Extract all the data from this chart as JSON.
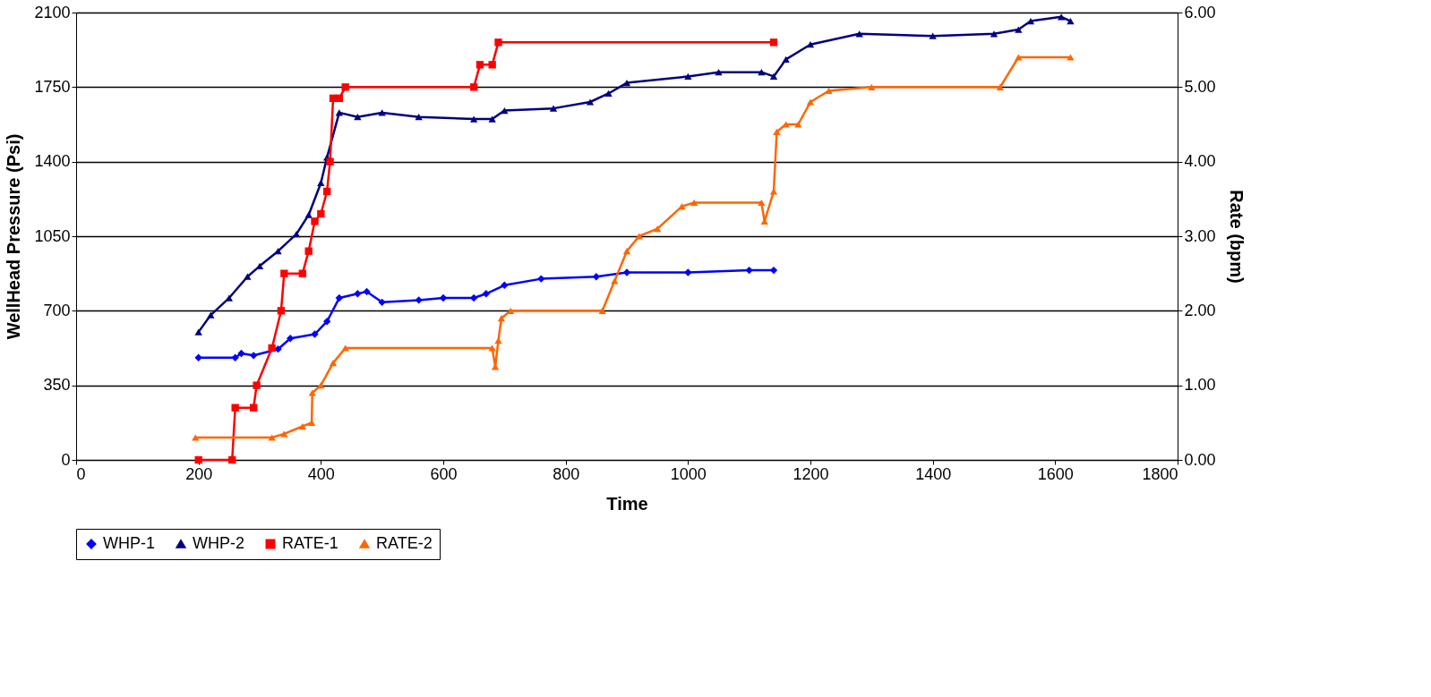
{
  "chart_data": {
    "type": "line",
    "xlabel": "Time",
    "ylabel": "WellHead Pressure (Psi)",
    "y2label": "Rate (bpm)",
    "xlim": [
      0,
      1800
    ],
    "xticks": [
      0,
      200,
      400,
      600,
      800,
      1000,
      1200,
      1400,
      1600,
      1800
    ],
    "ylim": [
      0,
      2100
    ],
    "yticks": [
      0,
      350,
      700,
      1050,
      1400,
      1750,
      2100
    ],
    "y2lim": [
      0,
      6
    ],
    "y2ticks": [
      {
        "value": 0,
        "label": "0.00"
      },
      {
        "value": 1,
        "label": "1.00"
      },
      {
        "value": 2,
        "label": "2.00"
      },
      {
        "value": 3,
        "label": "3.00"
      },
      {
        "value": 4,
        "label": "4.00"
      },
      {
        "value": 5,
        "label": "5.00"
      },
      {
        "value": 6,
        "label": "6.00"
      }
    ],
    "grid": "y",
    "legend": "bottom",
    "line_style": "solid",
    "series": [
      {
        "name": "WHP-1",
        "color": "#0000ff",
        "marker": "diamond",
        "x": [
          200,
          260,
          270,
          290,
          330,
          350,
          390,
          410,
          430,
          460,
          475,
          500,
          560,
          600,
          650,
          670,
          700,
          760,
          850,
          900,
          1000,
          1100,
          1140
        ],
        "values": [
          480,
          480,
          500,
          490,
          520,
          570,
          590,
          650,
          760,
          780,
          790,
          740,
          750,
          760,
          760,
          780,
          820,
          850,
          860,
          880,
          880,
          890,
          890
        ]
      },
      {
        "name": "WHP-2",
        "color": "#000080",
        "marker": "triangle",
        "x": [
          200,
          220,
          250,
          280,
          300,
          330,
          360,
          380,
          400,
          410,
          430,
          460,
          500,
          560,
          650,
          680,
          700,
          780,
          840,
          870,
          900,
          1000,
          1050,
          1120,
          1140,
          1160,
          1200,
          1280,
          1400,
          1500,
          1540,
          1560,
          1610,
          1625
        ],
        "values": [
          600,
          680,
          760,
          860,
          910,
          980,
          1060,
          1150,
          1300,
          1420,
          1630,
          1610,
          1630,
          1610,
          1600,
          1600,
          1640,
          1650,
          1680,
          1720,
          1770,
          1800,
          1820,
          1820,
          1800,
          1880,
          1950,
          2000,
          1990,
          2000,
          2020,
          2060,
          2080,
          2060
        ]
      },
      {
        "name": "RATE-1",
        "color": "#ff0000",
        "marker": "square",
        "axis": "y2",
        "x": [
          200,
          255,
          260,
          290,
          295,
          320,
          335,
          340,
          370,
          380,
          390,
          400,
          410,
          415,
          420,
          430,
          440,
          650,
          660,
          680,
          690,
          1140
        ],
        "values": [
          0,
          0,
          0.7,
          0.7,
          1.0,
          1.5,
          2.0,
          2.5,
          2.5,
          2.8,
          3.2,
          3.3,
          3.6,
          4.0,
          4.85,
          4.85,
          5.0,
          5.0,
          5.3,
          5.3,
          5.6,
          5.6
        ]
      },
      {
        "name": "RATE-2",
        "color": "#ff6600",
        "marker": "triangle",
        "axis": "y2",
        "x": [
          195,
          320,
          340,
          370,
          385,
          386,
          400,
          420,
          440,
          680,
          685,
          690,
          695,
          710,
          860,
          880,
          900,
          920,
          950,
          990,
          1010,
          1120,
          1125,
          1140,
          1145,
          1160,
          1180,
          1200,
          1230,
          1300,
          1510,
          1540,
          1625
        ],
        "values": [
          0.3,
          0.3,
          0.35,
          0.45,
          0.5,
          0.9,
          1.0,
          1.3,
          1.5,
          1.5,
          1.25,
          1.6,
          1.9,
          2.0,
          2.0,
          2.4,
          2.8,
          3.0,
          3.1,
          3.4,
          3.45,
          3.45,
          3.2,
          3.6,
          4.4,
          4.5,
          4.5,
          4.8,
          4.95,
          5.0,
          5.0,
          5.4,
          5.4
        ]
      }
    ]
  }
}
